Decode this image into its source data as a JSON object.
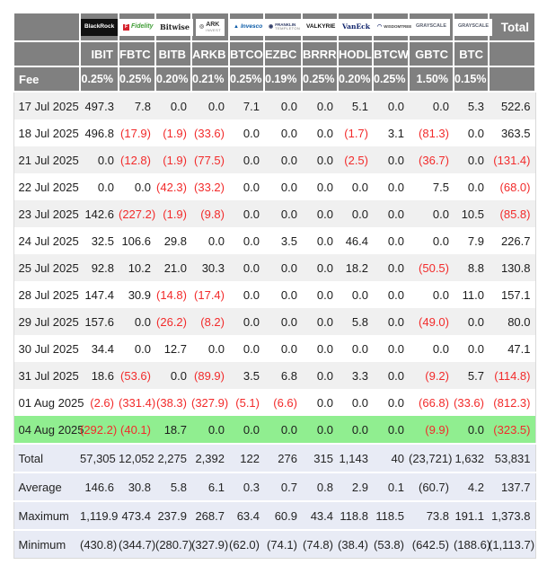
{
  "colors": {
    "header_bg": "#808080",
    "header_text": "#ffffff",
    "row_odd": "#f0f0f0",
    "row_even": "#ffffff",
    "highlight_row_bg": "#90ee90",
    "summary_row_bg": "#e8ebf5",
    "negative_text": "#f22b2b",
    "positive_text": "#1c1c1c"
  },
  "chart_data": {
    "type": "table",
    "fee_row_label": "Fee",
    "total_column_label": "Total",
    "providers": [
      {
        "name": "BlackRock",
        "ticker": "IBIT",
        "fee": "0.25%",
        "logo": {
          "id": "blackrock-logo",
          "bg": "#111111",
          "text": "BlackRock",
          "color": "#ffffff",
          "size": 6.5,
          "bold": true
        }
      },
      {
        "name": "Fidelity",
        "ticker": "FBTC",
        "fee": "0.25%",
        "logo": {
          "id": "fidelity-logo",
          "bg": "#ffffff",
          "icon": {
            "char": "F",
            "bg": "#d5232e",
            "color": "#ffffff"
          },
          "text": "Fidelity",
          "color": "#3f9c35",
          "size": 7,
          "bold": true,
          "italic": true
        }
      },
      {
        "name": "Bitwise",
        "ticker": "BITB",
        "fee": "0.20%",
        "logo": {
          "id": "bitwise-logo",
          "bg": "#ffffff",
          "text": "Bitwise",
          "color": "#222222",
          "size": 8,
          "serif": true
        }
      },
      {
        "name": "ARK Invest",
        "ticker": "ARKB",
        "fee": "0.21%",
        "logo": {
          "id": "ark-invest-logo",
          "bg": "#ffffff",
          "icon": {
            "char": "◎",
            "color": "#666666"
          },
          "text": "ARK",
          "sub": "INVEST",
          "color": "#333333",
          "size": 7,
          "bold": true
        }
      },
      {
        "name": "Invesco",
        "ticker": "BTCO",
        "fee": "0.25%",
        "logo": {
          "id": "invesco-logo",
          "bg": "#ffffff",
          "icon": {
            "char": "▲",
            "color": "#0b5ba8"
          },
          "text": "Invesco",
          "color": "#0b5ba8",
          "size": 6.5,
          "bold": true,
          "italic": true
        }
      },
      {
        "name": "Franklin Templeton",
        "ticker": "EZBC",
        "fee": "0.19%",
        "logo": {
          "id": "franklin-templeton-logo",
          "bg": "#ffffff",
          "icon": {
            "char": "◉",
            "color": "#2e3a66"
          },
          "text": "FRANKLIN",
          "sub": "TEMPLETON",
          "color": "#2e3a66",
          "size": 4.5
        }
      },
      {
        "name": "Valkyrie",
        "ticker": "BRRR",
        "fee": "0.25%",
        "logo": {
          "id": "valkyrie-logo",
          "bg": "#ffffff",
          "text": "VALKYRIE",
          "color": "#111111",
          "size": 6.5,
          "bold": true
        }
      },
      {
        "name": "VanEck",
        "ticker": "HODL",
        "fee": "0.20%",
        "logo": {
          "id": "vaneck-logo",
          "bg": "#ffffff",
          "text": "VanEck",
          "color": "#10246c",
          "size": 7.5,
          "bold": true,
          "serif": true
        }
      },
      {
        "name": "WisdomTree",
        "ticker": "BTCW",
        "fee": "0.25%",
        "logo": {
          "id": "wisdomtree-logo",
          "bg": "#ffffff",
          "icon": {
            "char": "◠",
            "color": "#1b2a6b"
          },
          "text": "WISDOMTREE",
          "color": "#444444",
          "size": 4.5
        }
      },
      {
        "name": "Grayscale",
        "ticker": "GBTC",
        "fee": "1.50%",
        "logo": {
          "id": "grayscale-gbtc-logo",
          "bg": "#ffffff",
          "text": "GRAYSCALE",
          "color": "#5b6170",
          "size": 5.5
        }
      },
      {
        "name": "Grayscale",
        "ticker": "BTC",
        "fee": "0.15%",
        "logo": {
          "id": "grayscale-btc-logo",
          "bg": "#ffffff",
          "text": "GRAYSCALE",
          "color": "#5b6170",
          "size": 5.5
        }
      }
    ],
    "rows": [
      {
        "date": "17 Jul 2025",
        "highlight": false,
        "values": [
          "497.3",
          "7.8",
          "0.0",
          "0.0",
          "7.1",
          "0.0",
          "0.0",
          "5.1",
          "0.0",
          "0.0",
          "5.3",
          "522.6"
        ]
      },
      {
        "date": "18 Jul 2025",
        "highlight": false,
        "values": [
          "496.8",
          "(17.9)",
          "(1.9)",
          "(33.6)",
          "0.0",
          "0.0",
          "0.0",
          "(1.7)",
          "3.1",
          "(81.3)",
          "0.0",
          "363.5"
        ]
      },
      {
        "date": "21 Jul 2025",
        "highlight": false,
        "values": [
          "0.0",
          "(12.8)",
          "(1.9)",
          "(77.5)",
          "0.0",
          "0.0",
          "0.0",
          "(2.5)",
          "0.0",
          "(36.7)",
          "0.0",
          "(131.4)"
        ]
      },
      {
        "date": "22 Jul 2025",
        "highlight": false,
        "values": [
          "0.0",
          "0.0",
          "(42.3)",
          "(33.2)",
          "0.0",
          "0.0",
          "0.0",
          "0.0",
          "0.0",
          "7.5",
          "0.0",
          "(68.0)"
        ]
      },
      {
        "date": "23 Jul 2025",
        "highlight": false,
        "values": [
          "142.6",
          "(227.2)",
          "(1.9)",
          "(9.8)",
          "0.0",
          "0.0",
          "0.0",
          "0.0",
          "0.0",
          "0.0",
          "10.5",
          "(85.8)"
        ]
      },
      {
        "date": "24 Jul 2025",
        "highlight": false,
        "values": [
          "32.5",
          "106.6",
          "29.8",
          "0.0",
          "0.0",
          "3.5",
          "0.0",
          "46.4",
          "0.0",
          "0.0",
          "7.9",
          "226.7"
        ]
      },
      {
        "date": "25 Jul 2025",
        "highlight": false,
        "values": [
          "92.8",
          "10.2",
          "21.0",
          "30.3",
          "0.0",
          "0.0",
          "0.0",
          "18.2",
          "0.0",
          "(50.5)",
          "8.8",
          "130.8"
        ]
      },
      {
        "date": "28 Jul 2025",
        "highlight": false,
        "values": [
          "147.4",
          "30.9",
          "(14.8)",
          "(17.4)",
          "0.0",
          "0.0",
          "0.0",
          "0.0",
          "0.0",
          "0.0",
          "11.0",
          "157.1"
        ]
      },
      {
        "date": "29 Jul 2025",
        "highlight": false,
        "values": [
          "157.6",
          "0.0",
          "(26.2)",
          "(8.2)",
          "0.0",
          "0.0",
          "0.0",
          "5.8",
          "0.0",
          "(49.0)",
          "0.0",
          "80.0"
        ]
      },
      {
        "date": "30 Jul 2025",
        "highlight": false,
        "values": [
          "34.4",
          "0.0",
          "12.7",
          "0.0",
          "0.0",
          "0.0",
          "0.0",
          "0.0",
          "0.0",
          "0.0",
          "0.0",
          "47.1"
        ]
      },
      {
        "date": "31 Jul 2025",
        "highlight": false,
        "values": [
          "18.6",
          "(53.6)",
          "0.0",
          "(89.9)",
          "3.5",
          "6.8",
          "0.0",
          "3.3",
          "0.0",
          "(9.2)",
          "5.7",
          "(114.8)"
        ]
      },
      {
        "date": "01 Aug 2025",
        "highlight": false,
        "values": [
          "(2.6)",
          "(331.4)",
          "(38.3)",
          "(327.9)",
          "(5.1)",
          "(6.6)",
          "0.0",
          "0.0",
          "0.0",
          "(66.8)",
          "(33.6)",
          "(812.3)"
        ]
      },
      {
        "date": "04 Aug 2025",
        "highlight": true,
        "values": [
          "(292.2)",
          "(40.1)",
          "18.7",
          "0.0",
          "0.0",
          "0.0",
          "0.0",
          "0.0",
          "0.0",
          "(9.9)",
          "0.0",
          "(323.5)"
        ]
      }
    ],
    "summary_rows": [
      {
        "label": "Total",
        "values": [
          "57,305",
          "12,052",
          "2,275",
          "2,392",
          "122",
          "276",
          "315",
          "1,143",
          "40",
          "(23,721)",
          "1,632",
          "53,831"
        ]
      },
      {
        "label": "Average",
        "values": [
          "146.6",
          "30.8",
          "5.8",
          "6.1",
          "0.3",
          "0.7",
          "0.8",
          "2.9",
          "0.1",
          "(60.7)",
          "4.2",
          "137.7"
        ]
      },
      {
        "label": "Maximum",
        "values": [
          "1,119.9",
          "473.4",
          "237.9",
          "268.7",
          "63.4",
          "60.9",
          "43.4",
          "118.8",
          "118.5",
          "73.8",
          "191.1",
          "1,373.8"
        ]
      },
      {
        "label": "Minimum",
        "values": [
          "(430.8)",
          "(344.7)",
          "(280.7)",
          "(327.9)",
          "(62.0)",
          "(74.1)",
          "(74.8)",
          "(38.4)",
          "(53.8)",
          "(642.5)",
          "(188.6)",
          "(1,113.7)"
        ]
      }
    ]
  }
}
